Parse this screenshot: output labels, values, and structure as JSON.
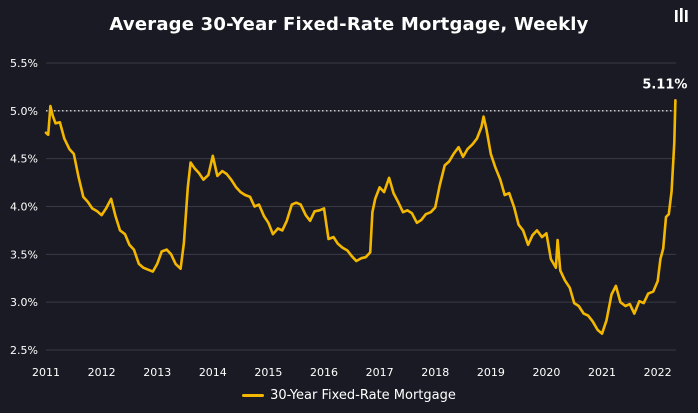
{
  "title": "Average 30-Year Fixed-Rate Mortgage, Weekly",
  "logo_icon": "pillar-logo-icon",
  "colors": {
    "background": "#1a1a24",
    "line": "#f3b700",
    "grid": "#3a3a46",
    "text": "#ffffff",
    "reference_line": "#ffffff"
  },
  "chart_data": {
    "type": "line",
    "title": "Average 30-Year Fixed-Rate Mortgage, Weekly",
    "xlabel": "",
    "ylabel": "",
    "xlim": [
      2011.0,
      2022.33
    ],
    "ylim": [
      2.5,
      5.5
    ],
    "y_ticks": [
      "2.5%",
      "3.0%",
      "3.5%",
      "4.0%",
      "4.5%",
      "5.0%",
      "5.5%"
    ],
    "y_tick_values": [
      2.5,
      3.0,
      3.5,
      4.0,
      4.5,
      5.0,
      5.5
    ],
    "x_ticks": [
      "2011",
      "2012",
      "2013",
      "2014",
      "2015",
      "2016",
      "2017",
      "2018",
      "2019",
      "2020",
      "2021",
      "2022"
    ],
    "x_tick_values": [
      2011,
      2012,
      2013,
      2014,
      2015,
      2016,
      2017,
      2018,
      2019,
      2020,
      2021,
      2022
    ],
    "grid": "horizontal",
    "reference_line": {
      "y": 5.0,
      "style": "dotted"
    },
    "annotation": {
      "text": "5.11%",
      "x": 2022.32,
      "y": 5.11
    },
    "legend": {
      "position": "bottom-center"
    },
    "series": [
      {
        "name": "30-Year Fixed-Rate Mortgage",
        "x": [
          2011.0,
          2011.04,
          2011.08,
          2011.12,
          2011.17,
          2011.25,
          2011.33,
          2011.42,
          2011.5,
          2011.58,
          2011.67,
          2011.75,
          2011.83,
          2011.92,
          2012.0,
          2012.08,
          2012.17,
          2012.25,
          2012.33,
          2012.42,
          2012.5,
          2012.58,
          2012.67,
          2012.75,
          2012.83,
          2012.92,
          2013.0,
          2013.08,
          2013.17,
          2013.25,
          2013.33,
          2013.42,
          2013.48,
          2013.55,
          2013.6,
          2013.67,
          2013.75,
          2013.83,
          2013.92,
          2014.0,
          2014.08,
          2014.17,
          2014.25,
          2014.33,
          2014.42,
          2014.5,
          2014.58,
          2014.67,
          2014.75,
          2014.83,
          2014.92,
          2015.0,
          2015.08,
          2015.17,
          2015.25,
          2015.33,
          2015.42,
          2015.5,
          2015.58,
          2015.67,
          2015.75,
          2015.83,
          2015.92,
          2016.0,
          2016.08,
          2016.17,
          2016.25,
          2016.33,
          2016.42,
          2016.5,
          2016.58,
          2016.67,
          2016.75,
          2016.83,
          2016.87,
          2016.92,
          2017.0,
          2017.08,
          2017.17,
          2017.25,
          2017.33,
          2017.42,
          2017.5,
          2017.58,
          2017.67,
          2017.75,
          2017.83,
          2017.92,
          2018.0,
          2018.08,
          2018.17,
          2018.25,
          2018.33,
          2018.42,
          2018.5,
          2018.58,
          2018.67,
          2018.75,
          2018.83,
          2018.87,
          2018.92,
          2019.0,
          2019.08,
          2019.17,
          2019.25,
          2019.33,
          2019.42,
          2019.5,
          2019.58,
          2019.67,
          2019.75,
          2019.83,
          2019.92,
          2020.0,
          2020.08,
          2020.17,
          2020.2,
          2020.25,
          2020.33,
          2020.42,
          2020.5,
          2020.58,
          2020.67,
          2020.75,
          2020.83,
          2020.92,
          2021.0,
          2021.08,
          2021.17,
          2021.25,
          2021.33,
          2021.42,
          2021.5,
          2021.58,
          2021.67,
          2021.75,
          2021.83,
          2021.92,
          2022.0,
          2022.05,
          2022.1,
          2022.15,
          2022.2,
          2022.25,
          2022.3,
          2022.32
        ],
        "values": [
          4.77,
          4.75,
          5.05,
          4.95,
          4.87,
          4.88,
          4.71,
          4.6,
          4.55,
          4.32,
          4.1,
          4.05,
          3.98,
          3.95,
          3.91,
          3.98,
          4.08,
          3.9,
          3.75,
          3.71,
          3.6,
          3.55,
          3.4,
          3.36,
          3.34,
          3.32,
          3.4,
          3.53,
          3.55,
          3.5,
          3.4,
          3.35,
          3.62,
          4.2,
          4.46,
          4.4,
          4.35,
          4.28,
          4.33,
          4.53,
          4.32,
          4.37,
          4.34,
          4.28,
          4.2,
          4.15,
          4.12,
          4.1,
          4.0,
          4.02,
          3.9,
          3.83,
          3.71,
          3.77,
          3.75,
          3.85,
          4.02,
          4.04,
          4.02,
          3.91,
          3.85,
          3.95,
          3.96,
          3.98,
          3.66,
          3.68,
          3.61,
          3.57,
          3.54,
          3.48,
          3.43,
          3.46,
          3.47,
          3.52,
          3.94,
          4.08,
          4.2,
          4.15,
          4.3,
          4.14,
          4.05,
          3.94,
          3.96,
          3.93,
          3.83,
          3.86,
          3.92,
          3.94,
          3.99,
          4.22,
          4.43,
          4.47,
          4.55,
          4.62,
          4.52,
          4.6,
          4.65,
          4.71,
          4.83,
          4.94,
          4.81,
          4.55,
          4.41,
          4.28,
          4.12,
          4.14,
          3.99,
          3.81,
          3.75,
          3.6,
          3.7,
          3.75,
          3.68,
          3.72,
          3.45,
          3.36,
          3.65,
          3.33,
          3.23,
          3.15,
          2.99,
          2.96,
          2.88,
          2.86,
          2.8,
          2.71,
          2.67,
          2.81,
          3.08,
          3.17,
          3.0,
          2.96,
          2.98,
          2.88,
          3.01,
          2.99,
          3.09,
          3.11,
          3.22,
          3.45,
          3.56,
          3.89,
          3.92,
          4.16,
          4.67,
          5.11
        ]
      }
    ]
  },
  "legend_items": [
    {
      "label": "30-Year Fixed-Rate Mortgage",
      "color": "#f3b700"
    }
  ]
}
